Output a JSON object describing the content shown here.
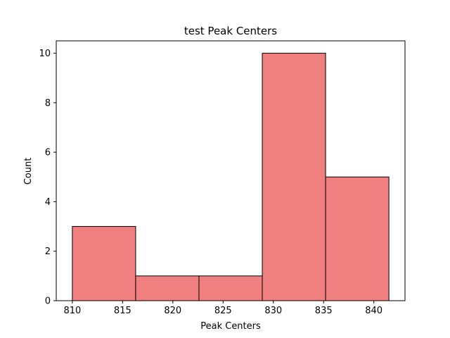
{
  "chart_data": {
    "type": "bar",
    "title": "test Peak Centers",
    "xlabel": "Peak Centers",
    "ylabel": "Count",
    "bins": [
      {
        "start": 810.0,
        "end": 816.3,
        "count": 3
      },
      {
        "start": 816.3,
        "end": 822.6,
        "count": 1
      },
      {
        "start": 822.6,
        "end": 828.9,
        "count": 1
      },
      {
        "start": 828.9,
        "end": 835.2,
        "count": 10
      },
      {
        "start": 835.2,
        "end": 841.5,
        "count": 5
      }
    ],
    "xlim": [
      808.4,
      843.1
    ],
    "ylim": [
      0,
      10.5
    ],
    "xticks": [
      "810",
      "815",
      "820",
      "825",
      "830",
      "835",
      "840"
    ],
    "yticks": [
      "0",
      "2",
      "4",
      "6",
      "8",
      "10"
    ],
    "bar_color": "#f08080",
    "edge_color": "#000000",
    "grid": false
  }
}
